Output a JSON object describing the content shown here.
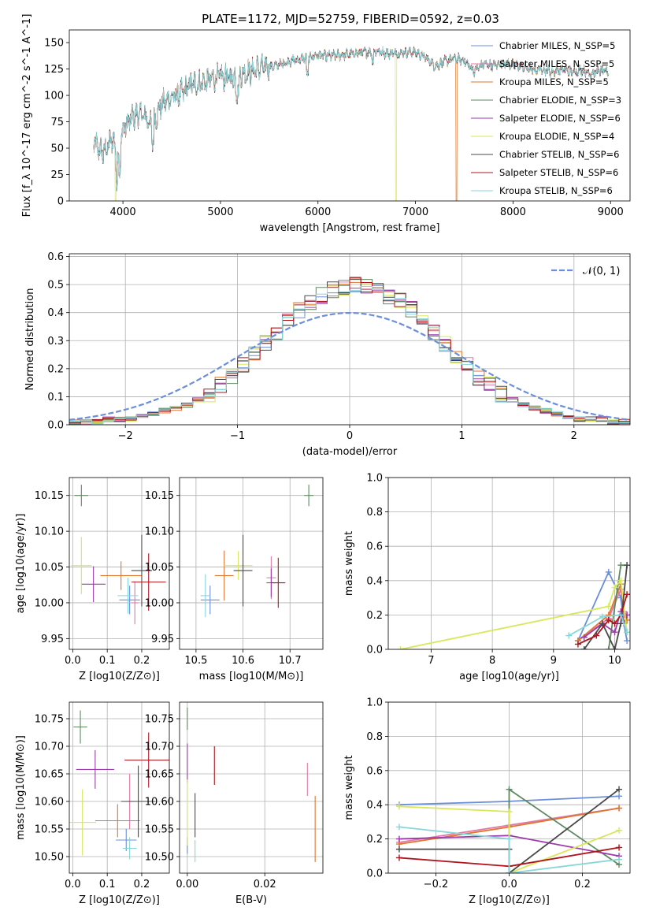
{
  "figure": {
    "title": "PLATE=1172, MJD=52759, FIBERID=0592, z=0.03"
  },
  "colors": {
    "Chabrier MILES": "#6b8fdc",
    "Salpeter MILES": "#e07aa6",
    "Kroupa MILES": "#e0762e",
    "Chabrier ELODIE": "#5e8a62",
    "Salpeter ELODIE": "#9d3aac",
    "Kroupa ELODIE": "#d8e85a",
    "Chabrier STELIB": "#4a4a4a",
    "Salpeter STELIB": "#b0141c",
    "Kroupa STELIB": "#86d6da"
  },
  "chart_data": [
    {
      "id": "spectrum",
      "type": "line",
      "title": "PLATE=1172, MJD=52759, FIBERID=0592, z=0.03",
      "xlabel": "wavelength [Angstrom, rest frame]",
      "ylabel": "Flux [f_λ 10^-17 erg cm^-2 s^-1 A^-1]",
      "xlim": [
        3450,
        9200
      ],
      "ylim": [
        0,
        162
      ],
      "xticks": [
        4000,
        5000,
        6000,
        7000,
        8000,
        9000
      ],
      "yticks": [
        0,
        25,
        50,
        75,
        100,
        125,
        150
      ],
      "grid": false,
      "legend": "top-right",
      "continuum": {
        "x": [
          3700,
          3800,
          3900,
          3950,
          4000,
          4100,
          4200,
          4300,
          4400,
          4500,
          4600,
          4700,
          4800,
          4900,
          5000,
          5100,
          5200,
          5300,
          5400,
          5500,
          5600,
          5700,
          5800,
          5900,
          6000,
          6100,
          6200,
          6300,
          6400,
          6500,
          6600,
          6700,
          6800,
          6900,
          7000,
          7100,
          7200,
          7300,
          7400,
          7500,
          7600,
          7700,
          7800,
          7900,
          8000,
          8100,
          8200,
          8300,
          8400,
          8500,
          8600,
          8700,
          8800,
          8900,
          8980
        ],
        "y": [
          55,
          45,
          60,
          40,
          68,
          80,
          82,
          72,
          92,
          98,
          102,
          110,
          112,
          115,
          118,
          116,
          120,
          122,
          126,
          127,
          129,
          132,
          134,
          136,
          138,
          137,
          138,
          139,
          140,
          141,
          142,
          140,
          140,
          141,
          141,
          136,
          128,
          132,
          135,
          133,
          123,
          130,
          128,
          131,
          129,
          127,
          124,
          125,
          122,
          125,
          122,
          124,
          121,
          123,
          122
        ]
      },
      "series": [
        {
          "name": "Chabrier MILES, N_SSP=5"
        },
        {
          "name": "Salpeter MILES, N_SSP=5"
        },
        {
          "name": "Kroupa MILES, N_SSP=5",
          "dropout_at": 7420
        },
        {
          "name": "Chabrier ELODIE, N_SSP=3"
        },
        {
          "name": "Salpeter ELODIE, N_SSP=6"
        },
        {
          "name": "Kroupa ELODIE, N_SSP=4",
          "dropout_at": 6800
        },
        {
          "name": "Chabrier STELIB, N_SSP=6"
        },
        {
          "name": "Salpeter STELIB, N_SSP=6"
        },
        {
          "name": "Kroupa STELIB, N_SSP=6"
        }
      ]
    },
    {
      "id": "residuals",
      "type": "histogram",
      "xlabel": "(data-model)/error",
      "ylabel": "Normed distribution",
      "xlim": [
        -2.5,
        2.5
      ],
      "ylim": [
        0,
        0.61
      ],
      "xticks": [
        -2,
        -1,
        0,
        1,
        2
      ],
      "yticks": [
        0.0,
        0.1,
        0.2,
        0.3,
        0.4,
        0.5,
        0.6
      ],
      "grid": true,
      "legend": "top-right",
      "reference_curve": {
        "name": "𝒩(0, 1)",
        "mean": 0,
        "sigma": 1
      },
      "bin_width": 0.1,
      "bin_start": -2.5,
      "base_profile": [
        0.01,
        0.01,
        0.01,
        0.02,
        0.02,
        0.02,
        0.03,
        0.04,
        0.05,
        0.06,
        0.07,
        0.09,
        0.11,
        0.14,
        0.17,
        0.21,
        0.25,
        0.29,
        0.33,
        0.37,
        0.41,
        0.44,
        0.46,
        0.48,
        0.49,
        0.5,
        0.49,
        0.48,
        0.46,
        0.44,
        0.41,
        0.37,
        0.33,
        0.29,
        0.25,
        0.21,
        0.17,
        0.14,
        0.11,
        0.09,
        0.07,
        0.06,
        0.05,
        0.04,
        0.03,
        0.02,
        0.02,
        0.02,
        0.01,
        0.01
      ]
    },
    {
      "id": "age-vs-Z",
      "type": "scatter-errorbar",
      "xlabel": "Z [log10(Z/Z⊙)]",
      "ylabel": "age  [log10(age/yr)]",
      "xlim": [
        -0.01,
        0.28
      ],
      "ylim": [
        9.935,
        10.175
      ],
      "xticks": [
        0.0,
        0.1,
        0.2
      ],
      "yticks": [
        9.95,
        10.0,
        10.05,
        10.1,
        10.15
      ],
      "grid": true,
      "points": [
        {
          "series": "Chabrier MILES",
          "x": 0.165,
          "y": 10.004,
          "xerr": 0.03,
          "yerr": 0.02
        },
        {
          "series": "Salpeter MILES",
          "x": 0.18,
          "y": 10.0,
          "xerr": 0.01,
          "yerr": 0.03
        },
        {
          "series": "Kroupa MILES",
          "x": 0.14,
          "y": 10.038,
          "xerr": 0.06,
          "yerr": 0.02
        },
        {
          "series": "Chabrier ELODIE",
          "x": 0.025,
          "y": 10.15,
          "xerr": 0.02,
          "yerr": 0.015
        },
        {
          "series": "Salpeter ELODIE",
          "x": 0.06,
          "y": 10.026,
          "xerr": 0.035,
          "yerr": 0.025
        },
        {
          "series": "Kroupa ELODIE",
          "x": 0.025,
          "y": 10.052,
          "xerr": 0.03,
          "yerr": 0.04
        },
        {
          "series": "Chabrier STELIB",
          "x": 0.2,
          "y": 10.045,
          "xerr": 0.03,
          "yerr": 0.05
        },
        {
          "series": "Salpeter STELIB",
          "x": 0.22,
          "y": 10.029,
          "xerr": 0.05,
          "yerr": 0.04
        },
        {
          "series": "Kroupa STELIB",
          "x": 0.16,
          "y": 10.01,
          "xerr": 0.03,
          "yerr": 0.025
        }
      ]
    },
    {
      "id": "age-vs-mass",
      "type": "scatter-errorbar",
      "xlabel": "mass [log10(M/M⊙)]",
      "ylabel": "",
      "xlim": [
        10.465,
        10.77
      ],
      "ylim": [
        9.935,
        10.175
      ],
      "xticks": [
        10.5,
        10.6,
        10.7
      ],
      "yticks": [
        9.95,
        10.0,
        10.05,
        10.1,
        10.15
      ],
      "grid": true,
      "points": [
        {
          "series": "Chabrier MILES",
          "x": 10.53,
          "y": 10.004,
          "xerr": 0.02,
          "yerr": 0.02
        },
        {
          "series": "Salpeter MILES",
          "x": 10.66,
          "y": 10.035,
          "xerr": 0.01,
          "yerr": 0.03
        },
        {
          "series": "Kroupa MILES",
          "x": 10.56,
          "y": 10.038,
          "xerr": 0.02,
          "yerr": 0.035
        },
        {
          "series": "Chabrier ELODIE",
          "x": 10.74,
          "y": 10.15,
          "xerr": 0.01,
          "yerr": 0.015
        },
        {
          "series": "Salpeter ELODIE",
          "x": 10.66,
          "y": 10.028,
          "xerr": 0.01,
          "yerr": 0.02
        },
        {
          "series": "Kroupa ELODIE",
          "x": 10.59,
          "y": 10.052,
          "xerr": 0.03,
          "yerr": 0.02
        },
        {
          "series": "Chabrier STELIB",
          "x": 10.6,
          "y": 10.045,
          "xerr": 0.02,
          "yerr": 0.05
        },
        {
          "series": "Salpeter STELIB",
          "x": 10.675,
          "y": 10.028,
          "xerr": 0.015,
          "yerr": 0.035
        },
        {
          "series": "Kroupa STELIB",
          "x": 10.52,
          "y": 10.01,
          "xerr": 0.01,
          "yerr": 0.03
        }
      ]
    },
    {
      "id": "mass-weight-vs-age",
      "type": "line",
      "xlabel": "age  [log10(age/yr)]",
      "ylabel": "mass weight",
      "xlim": [
        6.3,
        10.25
      ],
      "ylim": [
        0,
        1
      ],
      "xticks": [
        7,
        8,
        9,
        10
      ],
      "yticks": [
        0.0,
        0.2,
        0.4,
        0.6,
        0.8,
        1.0
      ],
      "grid": true,
      "series": [
        {
          "name": "Chabrier MILES",
          "x": [
            9.4,
            9.9,
            10.1,
            10.15,
            10.2
          ],
          "y": [
            0.05,
            0.45,
            0.3,
            0.15,
            0.05
          ]
        },
        {
          "name": "Salpeter MILES",
          "x": [
            9.4,
            9.9,
            10.1,
            10.15,
            10.2
          ],
          "y": [
            0.05,
            0.18,
            0.35,
            0.22,
            0.2
          ]
        },
        {
          "name": "Kroupa MILES",
          "x": [
            9.4,
            9.9,
            10.1,
            10.15,
            10.2
          ],
          "y": [
            0.05,
            0.2,
            0.38,
            0.2,
            0.17
          ]
        },
        {
          "name": "Chabrier ELODIE",
          "x": [
            9.9,
            10.1,
            10.2
          ],
          "y": [
            0.0,
            0.49,
            0.49
          ]
        },
        {
          "name": "Salpeter ELODIE",
          "x": [
            9.5,
            9.8,
            10.0,
            10.1,
            10.15,
            10.2
          ],
          "y": [
            0.07,
            0.15,
            0.1,
            0.22,
            0.15,
            0.2
          ]
        },
        {
          "name": "Kroupa ELODIE",
          "x": [
            6.5,
            9.9,
            10.0,
            10.1,
            10.2
          ],
          "y": [
            0.0,
            0.25,
            0.36,
            0.4,
            0.1
          ]
        },
        {
          "name": "Chabrier STELIB",
          "x": [
            9.5,
            9.8,
            10.0,
            10.1,
            10.2
          ],
          "y": [
            0.0,
            0.15,
            0.0,
            0.15,
            0.49
          ]
        },
        {
          "name": "Salpeter STELIB",
          "x": [
            9.4,
            9.7,
            9.9,
            10.0,
            10.1,
            10.2
          ],
          "y": [
            0.03,
            0.08,
            0.17,
            0.15,
            0.2,
            0.32
          ]
        },
        {
          "name": "Kroupa STELIB",
          "x": [
            9.25,
            9.8,
            10.1,
            10.2
          ],
          "y": [
            0.08,
            0.19,
            0.2,
            0.1
          ]
        }
      ]
    },
    {
      "id": "mass-vs-Z",
      "type": "scatter-errorbar",
      "xlabel": "Z [log10(Z/Z⊙)]",
      "ylabel": "mass [log10(M/M⊙)]",
      "xlim": [
        -0.01,
        0.28
      ],
      "ylim": [
        10.47,
        10.78
      ],
      "xticks": [
        0.0,
        0.1,
        0.2
      ],
      "yticks": [
        10.5,
        10.55,
        10.6,
        10.65,
        10.7,
        10.75
      ],
      "grid": true,
      "points": [
        {
          "series": "Chabrier MILES",
          "x": 0.155,
          "y": 10.53,
          "xerr": 0.03,
          "yerr": 0.02
        },
        {
          "series": "Salpeter MILES",
          "x": 0.165,
          "y": 10.6,
          "xerr": 0.01,
          "yerr": 0.05
        },
        {
          "series": "Kroupa MILES",
          "x": 0.13,
          "y": 10.565,
          "xerr": 0.065,
          "yerr": 0.03
        },
        {
          "series": "Chabrier ELODIE",
          "x": 0.022,
          "y": 10.735,
          "xerr": 0.02,
          "yerr": 0.03
        },
        {
          "series": "Salpeter ELODIE",
          "x": 0.065,
          "y": 10.658,
          "xerr": 0.055,
          "yerr": 0.035
        },
        {
          "series": "Kroupa ELODIE",
          "x": 0.028,
          "y": 10.562,
          "xerr": 0.04,
          "yerr": 0.06
        },
        {
          "series": "Chabrier STELIB",
          "x": 0.19,
          "y": 10.6,
          "xerr": 0.05,
          "yerr": 0.065
        },
        {
          "series": "Salpeter STELIB",
          "x": 0.22,
          "y": 10.675,
          "xerr": 0.07,
          "yerr": 0.05
        },
        {
          "series": "Kroupa STELIB",
          "x": 0.165,
          "y": 10.515,
          "xerr": 0.02,
          "yerr": 0.02
        }
      ]
    },
    {
      "id": "mass-vs-EBV",
      "type": "scatter-errorbar",
      "xlabel": "E(B-V)",
      "ylabel": "",
      "xlim": [
        -0.002,
        0.035
      ],
      "ylim": [
        10.47,
        10.78
      ],
      "xticks": [
        0.0,
        0.02
      ],
      "yticks": [
        10.5,
        10.55,
        10.6,
        10.65,
        10.7,
        10.75
      ],
      "grid": true,
      "points": [
        {
          "series": "Chabrier MILES",
          "x": 0.0,
          "y": 10.52,
          "xerr": 0.0,
          "yerr": 0.015
        },
        {
          "series": "Salpeter MILES",
          "x": 0.031,
          "y": 10.64,
          "xerr": 0.0,
          "yerr": 0.03
        },
        {
          "series": "Kroupa MILES",
          "x": 0.033,
          "y": 10.55,
          "xerr": 0.0,
          "yerr": 0.06
        },
        {
          "series": "Chabrier ELODIE",
          "x": 0.0,
          "y": 10.75,
          "xerr": 0.0,
          "yerr": 0.02
        },
        {
          "series": "Salpeter ELODIE",
          "x": 0.0,
          "y": 10.67,
          "xerr": 0.0,
          "yerr": 0.035
        },
        {
          "series": "Kroupa ELODIE",
          "x": 0.0,
          "y": 10.58,
          "xerr": 0.0,
          "yerr": 0.06
        },
        {
          "series": "Chabrier STELIB",
          "x": 0.002,
          "y": 10.575,
          "xerr": 0.0,
          "yerr": 0.04
        },
        {
          "series": "Salpeter STELIB",
          "x": 0.007,
          "y": 10.665,
          "xerr": 0.0,
          "yerr": 0.035
        },
        {
          "series": "Kroupa STELIB",
          "x": 0.002,
          "y": 10.51,
          "xerr": 0.0,
          "yerr": 0.02
        }
      ]
    },
    {
      "id": "mass-weight-vs-Z",
      "type": "line",
      "xlabel": "Z [log10(Z/Z⊙)]",
      "ylabel": "mass weight",
      "xlim": [
        -0.33,
        0.33
      ],
      "ylim": [
        0,
        1
      ],
      "xticks": [
        -0.2,
        0.0,
        0.2
      ],
      "yticks": [
        0.0,
        0.2,
        0.4,
        0.6,
        0.8,
        1.0
      ],
      "grid": true,
      "series": [
        {
          "name": "Chabrier MILES",
          "x": [
            -0.3,
            0.0,
            0.3
          ],
          "y": [
            0.4,
            0.42,
            0.45
          ]
        },
        {
          "name": "Salpeter MILES",
          "x": [
            -0.3,
            0.0,
            0.3
          ],
          "y": [
            0.18,
            0.28,
            0.38
          ]
        },
        {
          "name": "Kroupa MILES",
          "x": [
            -0.3,
            0.0,
            0.3
          ],
          "y": [
            0.17,
            0.27,
            0.38
          ]
        },
        {
          "name": "Chabrier ELODIE",
          "x": [
            0.0,
            0.0,
            0.3
          ],
          "y": [
            0.0,
            0.49,
            0.05
          ]
        },
        {
          "name": "Salpeter ELODIE",
          "x": [
            -0.3,
            0.0,
            0.3
          ],
          "y": [
            0.2,
            0.22,
            0.1
          ]
        },
        {
          "name": "Kroupa ELODIE",
          "x": [
            -0.3,
            0.0,
            0.0,
            0.3
          ],
          "y": [
            0.39,
            0.36,
            0.0,
            0.25
          ]
        },
        {
          "name": "Chabrier STELIB",
          "x": [
            -0.3,
            0.0,
            0.0,
            0.3
          ],
          "y": [
            0.14,
            0.14,
            0.0,
            0.49
          ]
        },
        {
          "name": "Salpeter STELIB",
          "x": [
            -0.3,
            0.0,
            0.3
          ],
          "y": [
            0.09,
            0.04,
            0.15
          ]
        },
        {
          "name": "Kroupa STELIB",
          "x": [
            -0.3,
            0.0,
            0.0,
            0.3
          ],
          "y": [
            0.27,
            0.2,
            0.0,
            0.08
          ]
        }
      ]
    }
  ]
}
